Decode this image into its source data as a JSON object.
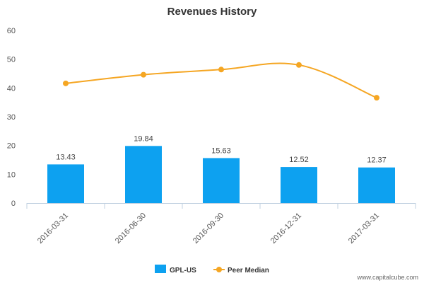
{
  "chart_data": {
    "type": "bar",
    "title": "Revenues History",
    "categories": [
      "2016-03-31",
      "2016-06-30",
      "2016-09-30",
      "2016-12-31",
      "2017-03-31"
    ],
    "series": [
      {
        "name": "GPL-US",
        "type": "bar",
        "color": "#0da1f0",
        "values": [
          13.43,
          19.84,
          15.63,
          12.52,
          12.37
        ],
        "labels": [
          "13.43",
          "19.84",
          "15.63",
          "12.52",
          "12.37"
        ]
      },
      {
        "name": "Peer Median",
        "type": "line",
        "color": "#f5a623",
        "values": [
          41.6,
          44.6,
          46.4,
          48.0,
          36.6
        ]
      }
    ],
    "ylim": [
      0,
      60
    ],
    "yticks": [
      "0",
      "10",
      "20",
      "30",
      "40",
      "50",
      "60"
    ],
    "xlabel": "",
    "ylabel": "",
    "grid": false,
    "legend": "bottom-center"
  },
  "watermark": "www.capitalcube.com"
}
